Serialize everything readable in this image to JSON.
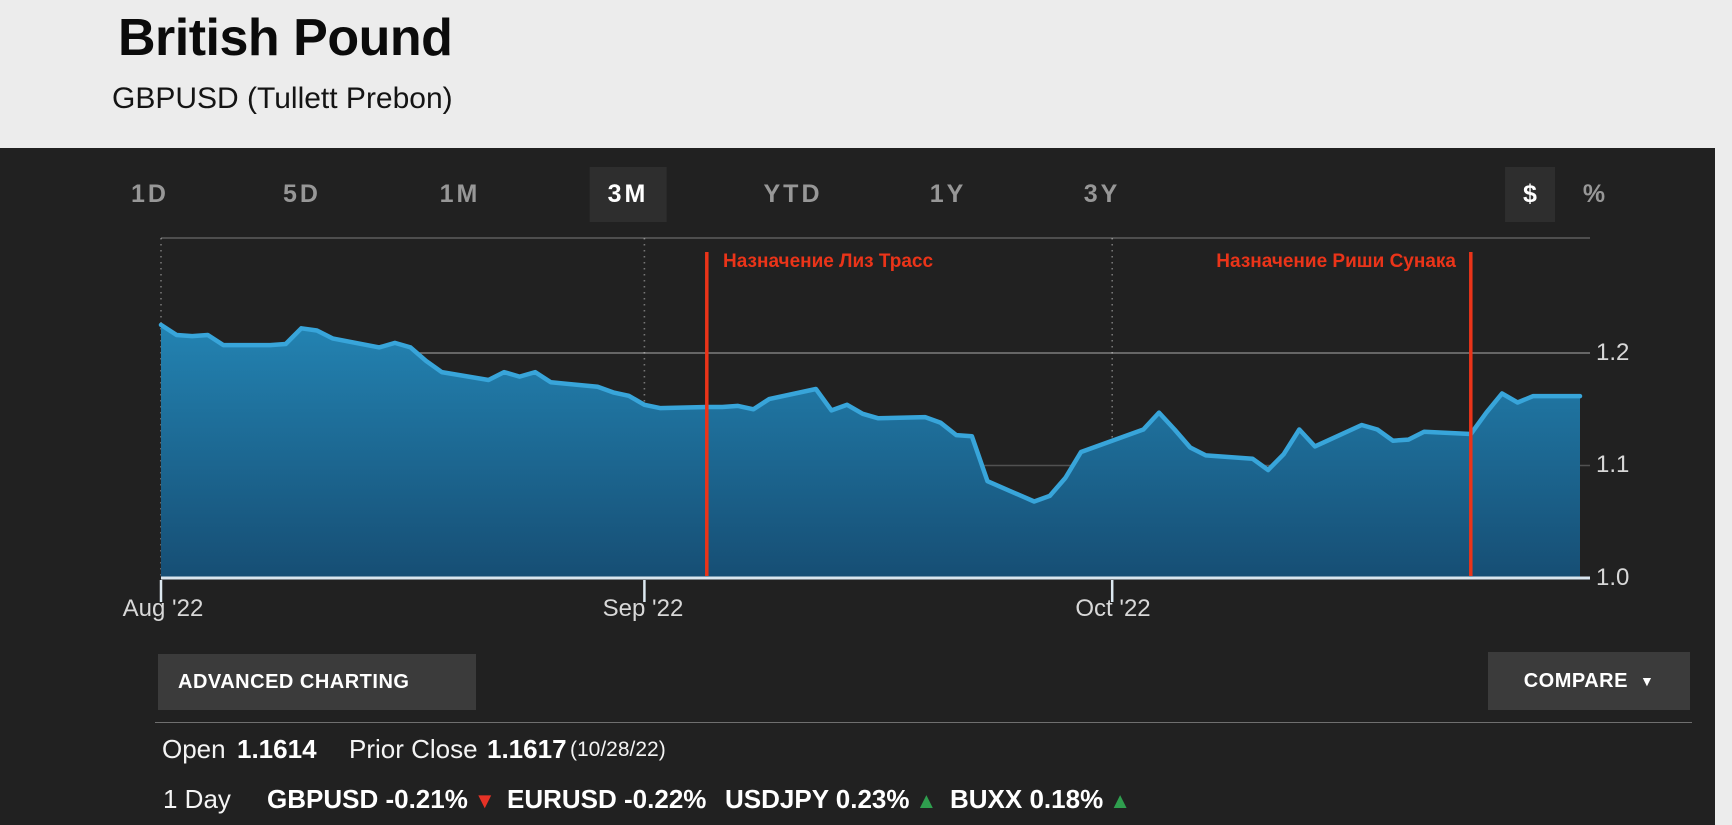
{
  "header": {
    "title": "British Pound",
    "subtitle": "GBPUSD  (Tullett Prebon)"
  },
  "toolbar": {
    "ranges": [
      {
        "label": "1D",
        "selected": false
      },
      {
        "label": "5D",
        "selected": false
      },
      {
        "label": "1M",
        "selected": false
      },
      {
        "label": "3M",
        "selected": true
      },
      {
        "label": "YTD",
        "selected": false
      },
      {
        "label": "1Y",
        "selected": false
      },
      {
        "label": "3Y",
        "selected": false
      }
    ],
    "units": [
      {
        "label": "$",
        "selected": true
      },
      {
        "label": "%",
        "selected": false
      }
    ]
  },
  "chart_data": {
    "type": "area",
    "symbol": "GBPUSD",
    "x_unit": "date (MM/DD of 2022)",
    "ylim": [
      1.0,
      1.3
    ],
    "grid": true,
    "line_color": "#38a5da",
    "fill_top": "#2383b2",
    "fill_bottom": "#164e74",
    "yticks": [
      {
        "value": 1.2,
        "label": "1.2"
      },
      {
        "value": 1.1,
        "label": "1.1"
      },
      {
        "value": 1.0,
        "label": "1.0"
      }
    ],
    "xticks": [
      {
        "date": "08/01",
        "label": "Aug '22"
      },
      {
        "date": "09/01",
        "label": "Sep '22"
      },
      {
        "date": "10/01",
        "label": "Oct '22"
      }
    ],
    "annotations": [
      {
        "label": "Назначение Лиз Трасс",
        "date": "09/05",
        "text_side": "right",
        "color": "#ea3419"
      },
      {
        "label": "Назначение Риши Сунака",
        "date": "10/24",
        "text_side": "left",
        "color": "#ea3419"
      }
    ],
    "series": [
      {
        "name": "GBPUSD",
        "points": [
          [
            "08/01",
            1.225
          ],
          [
            "08/02",
            1.216
          ],
          [
            "08/03",
            1.215
          ],
          [
            "08/04",
            1.216
          ],
          [
            "08/05",
            1.207
          ],
          [
            "08/08",
            1.207
          ],
          [
            "08/09",
            1.208
          ],
          [
            "08/10",
            1.222
          ],
          [
            "08/11",
            1.22
          ],
          [
            "08/12",
            1.213
          ],
          [
            "08/15",
            1.205
          ],
          [
            "08/16",
            1.209
          ],
          [
            "08/17",
            1.205
          ],
          [
            "08/18",
            1.193
          ],
          [
            "08/19",
            1.183
          ],
          [
            "08/22",
            1.176
          ],
          [
            "08/23",
            1.183
          ],
          [
            "08/24",
            1.179
          ],
          [
            "08/25",
            1.183
          ],
          [
            "08/26",
            1.174
          ],
          [
            "08/29",
            1.17
          ],
          [
            "08/30",
            1.165
          ],
          [
            "08/31",
            1.162
          ],
          [
            "09/01",
            1.154
          ],
          [
            "09/02",
            1.151
          ],
          [
            "09/05",
            1.152
          ],
          [
            "09/06",
            1.152
          ],
          [
            "09/07",
            1.153
          ],
          [
            "09/08",
            1.15
          ],
          [
            "09/09",
            1.159
          ],
          [
            "09/12",
            1.168
          ],
          [
            "09/13",
            1.149
          ],
          [
            "09/14",
            1.154
          ],
          [
            "09/15",
            1.146
          ],
          [
            "09/16",
            1.142
          ],
          [
            "09/19",
            1.143
          ],
          [
            "09/20",
            1.138
          ],
          [
            "09/21",
            1.127
          ],
          [
            "09/22",
            1.126
          ],
          [
            "09/23",
            1.086
          ],
          [
            "09/26",
            1.068
          ],
          [
            "09/27",
            1.073
          ],
          [
            "09/28",
            1.089
          ],
          [
            "09/29",
            1.112
          ],
          [
            "09/30",
            1.117
          ],
          [
            "10/03",
            1.132
          ],
          [
            "10/04",
            1.147
          ],
          [
            "10/05",
            1.132
          ],
          [
            "10/06",
            1.116
          ],
          [
            "10/07",
            1.109
          ],
          [
            "10/10",
            1.106
          ],
          [
            "10/11",
            1.096
          ],
          [
            "10/12",
            1.11
          ],
          [
            "10/13",
            1.132
          ],
          [
            "10/14",
            1.117
          ],
          [
            "10/17",
            1.136
          ],
          [
            "10/18",
            1.132
          ],
          [
            "10/19",
            1.122
          ],
          [
            "10/20",
            1.123
          ],
          [
            "10/21",
            1.13
          ],
          [
            "10/24",
            1.128
          ],
          [
            "10/25",
            1.147
          ],
          [
            "10/26",
            1.164
          ],
          [
            "10/27",
            1.156
          ],
          [
            "10/28",
            1.1617
          ],
          [
            "10/31",
            1.1617
          ]
        ]
      }
    ]
  },
  "actions": {
    "advanced_label": "ADVANCED CHARTING",
    "compare_label": "COMPARE",
    "compare_arrow": "▼"
  },
  "stats": {
    "open_label": "Open",
    "open_value": "1.1614",
    "prior_close_label": "Prior Close",
    "prior_close_value": "1.1617",
    "prior_close_date": "(10/28/22)",
    "day_label": "1 Day",
    "movers": [
      {
        "label": "GBPUSD -0.21%",
        "arrow": "▼",
        "arrow_color": "#e63226"
      },
      {
        "label": "EURUSD -0.22%",
        "arrow": "",
        "arrow_color": ""
      },
      {
        "label": "USDJPY 0.23%",
        "arrow": "▲",
        "arrow_color": "#2f9e4e"
      },
      {
        "label": "BUXX 0.18%",
        "arrow": "▲",
        "arrow_color": "#2f9e4e"
      }
    ]
  }
}
